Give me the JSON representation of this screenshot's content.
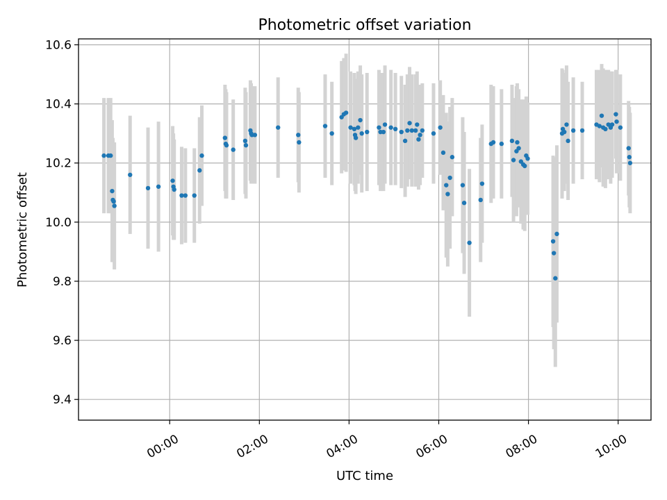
{
  "chart_data": {
    "type": "scatter",
    "title": "Photometric offset variation",
    "xlabel": "UTC time",
    "ylabel": "Photometric offset",
    "x_ticks": [
      "00:00",
      "02:00",
      "04:00",
      "06:00",
      "08:00",
      "10:00"
    ],
    "y_ticks": [
      "9.4",
      "9.6",
      "9.8",
      "10.0",
      "10.2",
      "10.4",
      "10.6"
    ],
    "xlim": [
      "-02:02",
      "10:44"
    ],
    "ylim": [
      9.33,
      10.62
    ],
    "grid": true,
    "colors": {
      "point": "#1f77b4",
      "errorbar": "#d3d3d3",
      "grid": "#b0b0b0"
    },
    "series": [
      {
        "points": [
          [
            "-01:28",
            10.225,
            0.195
          ],
          [
            "-01:22",
            10.225,
            0.195
          ],
          [
            "-01:19",
            10.225,
            0.195
          ],
          [
            "-01:17",
            10.105,
            0.24
          ],
          [
            "-01:16",
            10.075,
            0.21
          ],
          [
            "-01:15",
            10.07,
            0.2
          ],
          [
            "-01:14",
            10.055,
            0.215
          ],
          [
            "-00:53",
            10.16,
            0.2
          ],
          [
            "-00:29",
            10.115,
            0.205
          ],
          [
            "-00:15",
            10.12,
            0.22
          ],
          [
            "00:04",
            10.14,
            0.185
          ],
          [
            "00:05",
            10.12,
            0.18
          ],
          [
            "00:06",
            10.11,
            0.17
          ],
          [
            "00:16",
            10.09,
            0.165
          ],
          [
            "00:21",
            10.09,
            0.16
          ],
          [
            "00:33",
            10.09,
            0.16
          ],
          [
            "00:40",
            10.175,
            0.18
          ],
          [
            "00:43",
            10.225,
            0.17
          ],
          [
            "01:14",
            10.285,
            0.18
          ],
          [
            "01:15",
            10.265,
            0.185
          ],
          [
            "01:16",
            10.26,
            0.18
          ],
          [
            "01:25",
            10.245,
            0.17
          ],
          [
            "01:41",
            10.275,
            0.18
          ],
          [
            "01:42",
            10.26,
            0.18
          ],
          [
            "01:48",
            10.31,
            0.17
          ],
          [
            "01:49",
            10.3,
            0.17
          ],
          [
            "01:50",
            10.295,
            0.165
          ],
          [
            "01:54",
            10.295,
            0.165
          ],
          [
            "02:25",
            10.32,
            0.17
          ],
          [
            "02:52",
            10.295,
            0.16
          ],
          [
            "02:53",
            10.27,
            0.17
          ],
          [
            "03:28",
            10.325,
            0.175
          ],
          [
            "03:37",
            10.3,
            0.175
          ],
          [
            "03:50",
            10.355,
            0.19
          ],
          [
            "03:53",
            10.365,
            0.19
          ],
          [
            "03:56",
            10.37,
            0.2
          ],
          [
            "04:02",
            10.32,
            0.19
          ],
          [
            "04:07",
            10.315,
            0.19
          ],
          [
            "04:08",
            10.295,
            0.19
          ],
          [
            "04:09",
            10.285,
            0.19
          ],
          [
            "04:12",
            10.32,
            0.19
          ],
          [
            "04:15",
            10.345,
            0.185
          ],
          [
            "04:17",
            10.3,
            0.2
          ],
          [
            "04:24",
            10.305,
            0.2
          ],
          [
            "04:40",
            10.32,
            0.195
          ],
          [
            "04:42",
            10.305,
            0.2
          ],
          [
            "04:46",
            10.305,
            0.2
          ],
          [
            "04:48",
            10.33,
            0.2
          ],
          [
            "04:56",
            10.32,
            0.195
          ],
          [
            "05:02",
            10.315,
            0.19
          ],
          [
            "05:10",
            10.305,
            0.19
          ],
          [
            "05:15",
            10.275,
            0.19
          ],
          [
            "05:18",
            10.31,
            0.19
          ],
          [
            "05:21",
            10.335,
            0.19
          ],
          [
            "05:24",
            10.31,
            0.19
          ],
          [
            "05:29",
            10.31,
            0.19
          ],
          [
            "05:31",
            10.33,
            0.18
          ],
          [
            "05:33",
            10.28,
            0.17
          ],
          [
            "05:35",
            10.295,
            0.17
          ],
          [
            "05:38",
            10.31,
            0.16
          ],
          [
            "05:53",
            10.3,
            0.17
          ],
          [
            "06:02",
            10.32,
            0.16
          ],
          [
            "06:06",
            10.235,
            0.195
          ],
          [
            "06:10",
            10.125,
            0.245
          ],
          [
            "06:12",
            10.095,
            0.245
          ],
          [
            "06:15",
            10.15,
            0.24
          ],
          [
            "06:18",
            10.22,
            0.2
          ],
          [
            "06:32",
            10.125,
            0.23
          ],
          [
            "06:34",
            10.065,
            0.24
          ],
          [
            "06:41",
            9.93,
            0.25
          ],
          [
            "06:56",
            10.075,
            0.21
          ],
          [
            "06:58",
            10.13,
            0.2
          ],
          [
            "07:10",
            10.265,
            0.2
          ],
          [
            "07:13",
            10.27,
            0.19
          ],
          [
            "07:24",
            10.265,
            0.185
          ],
          [
            "07:38",
            10.275,
            0.19
          ],
          [
            "07:40",
            10.21,
            0.21
          ],
          [
            "07:44",
            10.24,
            0.22
          ],
          [
            "07:45",
            10.27,
            0.2
          ],
          [
            "07:47",
            10.25,
            0.2
          ],
          [
            "07:50",
            10.205,
            0.21
          ],
          [
            "07:53",
            10.195,
            0.22
          ],
          [
            "07:55",
            10.19,
            0.22
          ],
          [
            "07:57",
            10.225,
            0.2
          ],
          [
            "07:59",
            10.215,
            0.19
          ],
          [
            "08:33",
            9.935,
            0.29
          ],
          [
            "08:34",
            9.895,
            0.325
          ],
          [
            "08:36",
            9.81,
            0.3
          ],
          [
            "08:38",
            9.96,
            0.3
          ],
          [
            "08:45",
            10.3,
            0.22
          ],
          [
            "08:46",
            10.315,
            0.2
          ],
          [
            "08:48",
            10.305,
            0.2
          ],
          [
            "08:51",
            10.33,
            0.2
          ],
          [
            "08:53",
            10.275,
            0.2
          ],
          [
            "09:00",
            10.31,
            0.18
          ],
          [
            "09:12",
            10.31,
            0.165
          ],
          [
            "09:31",
            10.33,
            0.185
          ],
          [
            "09:35",
            10.325,
            0.19
          ],
          [
            "09:38",
            10.36,
            0.175
          ],
          [
            "09:40",
            10.32,
            0.2
          ],
          [
            "09:43",
            10.315,
            0.2
          ],
          [
            "09:47",
            10.33,
            0.185
          ],
          [
            "09:50",
            10.32,
            0.19
          ],
          [
            "09:52",
            10.33,
            0.18
          ],
          [
            "09:57",
            10.365,
            0.15
          ],
          [
            "09:58",
            10.34,
            0.175
          ],
          [
            "10:03",
            10.32,
            0.18
          ],
          [
            "10:14",
            10.25,
            0.16
          ],
          [
            "10:15",
            10.22,
            0.17
          ],
          [
            "10:16",
            10.2,
            0.17
          ]
        ]
      }
    ]
  }
}
